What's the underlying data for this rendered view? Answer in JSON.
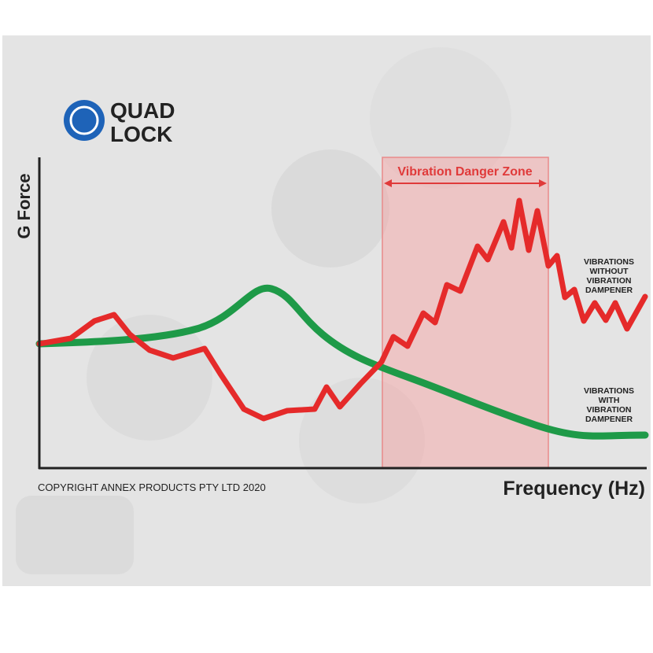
{
  "logo": {
    "line1": "QUAD",
    "line2": "LOCK"
  },
  "y_axis_label": "G Force",
  "x_axis_label": "Frequency (Hz)",
  "zone_label": "Vibration Danger Zone",
  "annotations": [
    {
      "lines": [
        "VIBRATIONS",
        "WITHOUT",
        "VIBRATION",
        "DAMPENER"
      ]
    },
    {
      "lines": [
        "VIBRATIONS",
        "WITH",
        "VIBRATION",
        "DAMPENER"
      ]
    }
  ],
  "copyright": "COPYRIGHT ANNEX PRODUCTS PTY LTD 2020"
}
